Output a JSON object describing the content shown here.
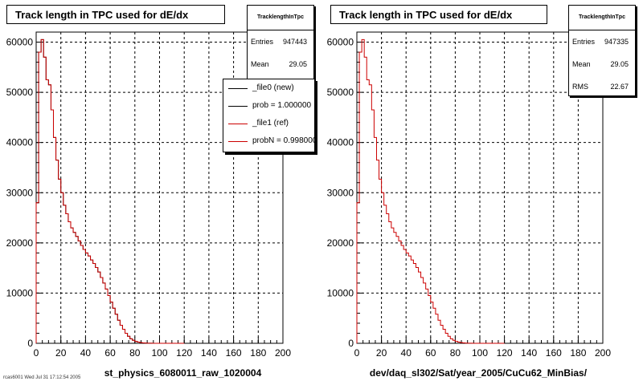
{
  "footer_text": "rcas6001 Wed Jul 31 17:12:54 2005",
  "colors": {
    "new": "#000000",
    "ref": "#cc0000",
    "grid": "#000000"
  },
  "panels": [
    {
      "title": "Track length in TPC used for dE/dx",
      "stats": {
        "name": "TracklengthInTpc",
        "entries_label": "Entries",
        "entries": "947443",
        "mean_label": "Mean",
        "mean": "29.05"
      },
      "xname": "st_physics_6080011_raw_1020004",
      "legend": [
        {
          "text": "_file0 (new)",
          "color": "#000000"
        },
        {
          "text": "prob = 1.000000",
          "color": "#000000"
        },
        {
          "text": "_file1 (ref)",
          "color": "#cc0000"
        },
        {
          "text": "probN = 0.998000",
          "color": "#cc0000"
        }
      ]
    },
    {
      "title": "Track length in TPC used for dE/dx",
      "stats": {
        "name": "TracklengthInTpc",
        "entries_label": "Entries",
        "entries": "947335",
        "mean_label": "Mean",
        "mean": "29.05",
        "rms_label": "RMS",
        "rms": "22.67"
      },
      "xname": "dev/daq_sl302/Sat/year_2005/CuCu62_MinBias/"
    }
  ],
  "chart_data": [
    {
      "type": "step",
      "xlim": [
        0,
        200
      ],
      "ylim": [
        0,
        62000
      ],
      "x_ticks": [
        0,
        20,
        40,
        60,
        80,
        100,
        120,
        140,
        160,
        180,
        200
      ],
      "y_ticks": [
        0,
        10000,
        20000,
        30000,
        40000,
        50000,
        60000
      ],
      "y_tick_labels": [
        "0",
        "10000",
        "20000",
        "30000",
        "40000",
        "50000",
        "60000"
      ],
      "grid": true,
      "bin_width": 2,
      "series": [
        {
          "name": "_file0 (new)",
          "x": [
            0,
            2,
            4,
            6,
            8,
            10,
            12,
            14,
            16,
            18,
            20,
            22,
            24,
            26,
            28,
            30,
            32,
            34,
            36,
            38,
            40,
            42,
            44,
            46,
            48,
            50,
            52,
            54,
            56,
            58,
            60,
            62,
            64,
            66,
            68,
            70,
            72,
            74,
            76,
            78,
            80,
            82,
            84,
            86,
            88,
            90,
            92,
            94,
            96,
            98,
            100,
            102,
            104,
            106,
            108,
            110,
            112,
            114,
            116,
            118
          ],
          "values": [
            28000,
            58000,
            60500,
            57000,
            52500,
            51500,
            46500,
            41000,
            36500,
            32700,
            30000,
            27500,
            25800,
            24200,
            23000,
            22100,
            21300,
            20400,
            19500,
            18700,
            18000,
            17400,
            16600,
            15900,
            15100,
            14200,
            13100,
            12000,
            10800,
            9500,
            8200,
            7000,
            5800,
            4600,
            3600,
            2800,
            2000,
            1400,
            900,
            600,
            380,
            230,
            140,
            80,
            45,
            25,
            12,
            6,
            3,
            1,
            0,
            0,
            0,
            0,
            0,
            0,
            0,
            0,
            0,
            0
          ]
        },
        {
          "name": "_file1 (ref)",
          "x": [
            0,
            2,
            4,
            6,
            8,
            10,
            12,
            14,
            16,
            18,
            20,
            22,
            24,
            26,
            28,
            30,
            32,
            34,
            36,
            38,
            40,
            42,
            44,
            46,
            48,
            50,
            52,
            54,
            56,
            58,
            60,
            62,
            64,
            66,
            68,
            70,
            72,
            74,
            76,
            78,
            80,
            82,
            84,
            86,
            88,
            90,
            92,
            94,
            96,
            98,
            100,
            102,
            104,
            106,
            108,
            110,
            112,
            114,
            116,
            118
          ],
          "values": [
            28000,
            58000,
            60500,
            57000,
            52500,
            51500,
            46500,
            41000,
            36500,
            32700,
            30000,
            27500,
            25800,
            24200,
            23000,
            22100,
            21300,
            20400,
            19500,
            18700,
            18000,
            17400,
            16600,
            15900,
            15100,
            14200,
            13100,
            12000,
            10800,
            9500,
            8200,
            7000,
            5800,
            4600,
            3600,
            2800,
            2000,
            1400,
            900,
            600,
            380,
            230,
            140,
            80,
            45,
            25,
            12,
            6,
            3,
            1,
            0,
            0,
            0,
            0,
            0,
            0,
            0,
            0,
            0,
            0
          ]
        }
      ]
    },
    {
      "type": "step",
      "xlim": [
        0,
        200
      ],
      "ylim": [
        0,
        62000
      ],
      "x_ticks": [
        0,
        20,
        40,
        60,
        80,
        100,
        120,
        140,
        160,
        180,
        200
      ],
      "y_ticks": [
        0,
        10000,
        20000,
        30000,
        40000,
        50000,
        60000
      ],
      "y_tick_labels": [
        "0",
        "10000",
        "20000",
        "30000",
        "40000",
        "50000",
        "60000"
      ],
      "grid": true,
      "bin_width": 2,
      "series": [
        {
          "name": "TracklengthInTpc",
          "x": [
            0,
            2,
            4,
            6,
            8,
            10,
            12,
            14,
            16,
            18,
            20,
            22,
            24,
            26,
            28,
            30,
            32,
            34,
            36,
            38,
            40,
            42,
            44,
            46,
            48,
            50,
            52,
            54,
            56,
            58,
            60,
            62,
            64,
            66,
            68,
            70,
            72,
            74,
            76,
            78,
            80,
            82,
            84,
            86,
            88,
            90,
            92,
            94,
            96,
            98,
            100,
            102,
            104,
            106,
            108,
            110,
            112,
            114,
            116,
            118
          ],
          "values": [
            28000,
            58000,
            60500,
            57000,
            52500,
            51500,
            46500,
            41000,
            36500,
            32700,
            30000,
            27500,
            25800,
            24200,
            23000,
            22100,
            21300,
            20400,
            19500,
            18700,
            18000,
            17400,
            16600,
            15900,
            15100,
            14200,
            13100,
            12000,
            10800,
            9500,
            8200,
            7000,
            5800,
            4600,
            3600,
            2800,
            2000,
            1400,
            900,
            600,
            380,
            230,
            140,
            80,
            45,
            25,
            12,
            6,
            3,
            1,
            0,
            0,
            0,
            0,
            0,
            0,
            0,
            0,
            0,
            0
          ]
        }
      ]
    }
  ]
}
